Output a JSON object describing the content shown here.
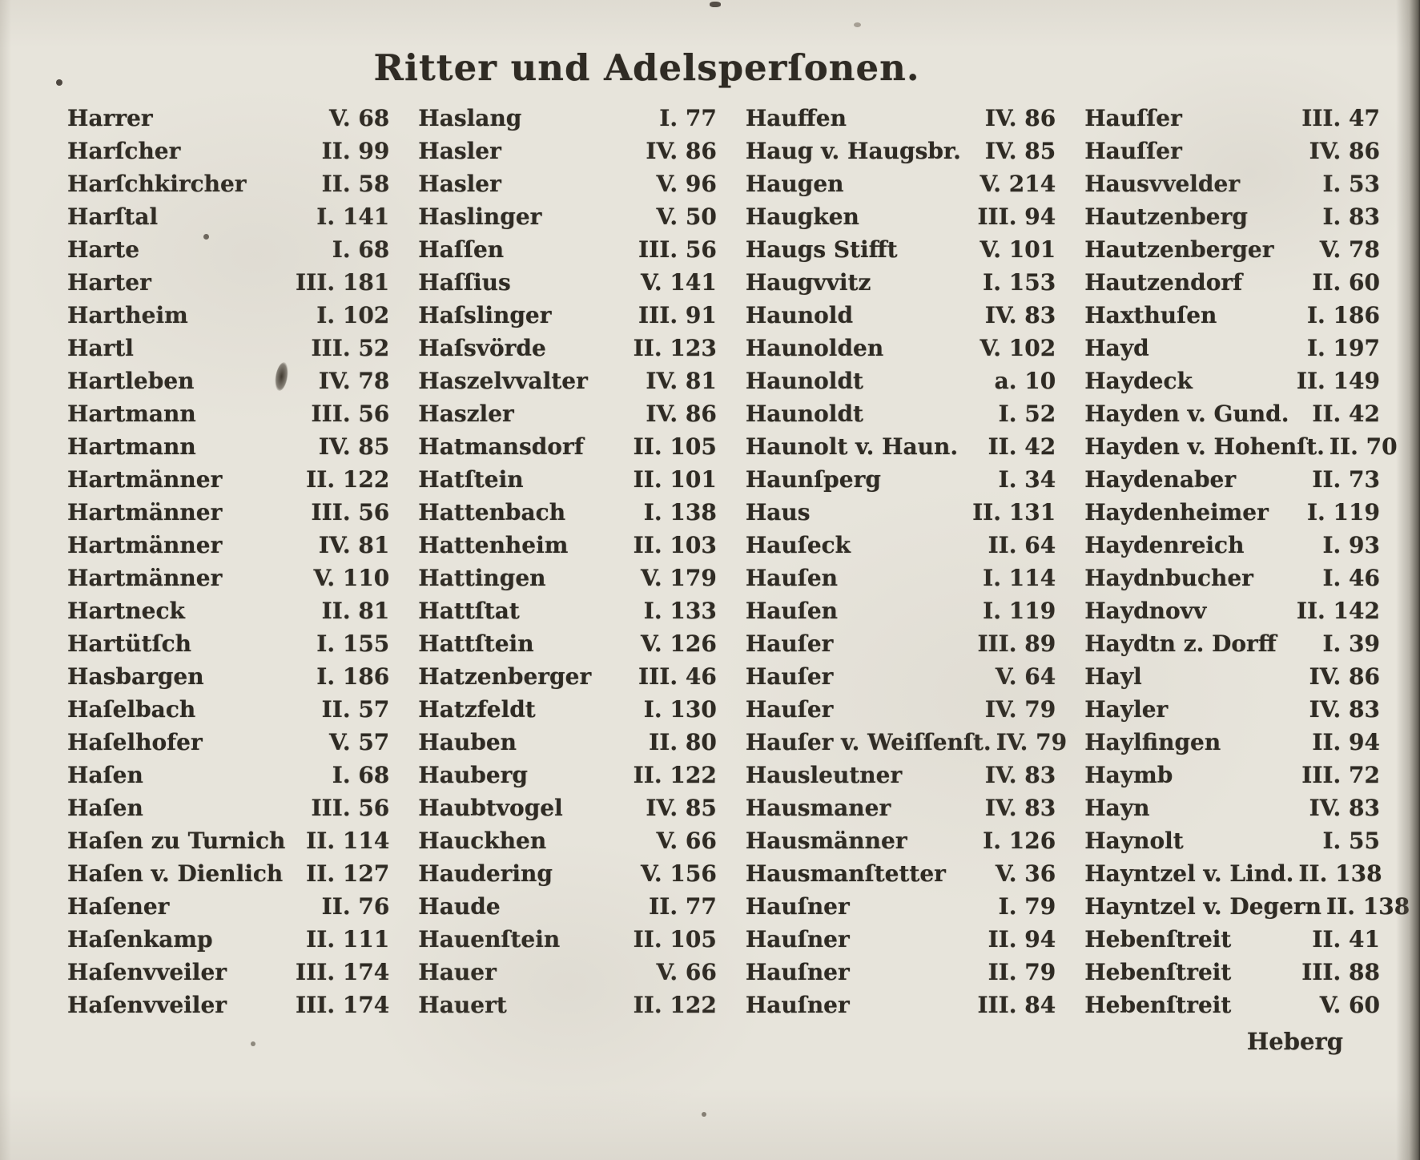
{
  "title": "Ritter und Adelsperſonen.",
  "catchword": "Heberg",
  "page_style": {
    "paper_color": "#e7e4db",
    "ink_color": "#2f2b24"
  },
  "index": {
    "columns": [
      [
        {
          "name": "Harrer",
          "ref": "V. 68"
        },
        {
          "name": "Harſcher",
          "ref": "II. 99"
        },
        {
          "name": "Harſchkircher",
          "ref": "II. 58"
        },
        {
          "name": "Harſtal",
          "ref": "I. 141"
        },
        {
          "name": "Harte",
          "ref": "I. 68"
        },
        {
          "name": "Harter",
          "ref": "III. 181"
        },
        {
          "name": "Hartheim",
          "ref": "I. 102"
        },
        {
          "name": "Hartl",
          "ref": "III. 52"
        },
        {
          "name": "Hartleben",
          "ref": "IV. 78"
        },
        {
          "name": "Hartmann",
          "ref": "III. 56"
        },
        {
          "name": "Hartmann",
          "ref": "IV. 85"
        },
        {
          "name": "Hartmänner",
          "ref": "II. 122"
        },
        {
          "name": "Hartmänner",
          "ref": "III. 56"
        },
        {
          "name": "Hartmänner",
          "ref": "IV. 81"
        },
        {
          "name": "Hartmänner",
          "ref": "V. 110"
        },
        {
          "name": "Hartneck",
          "ref": "II. 81"
        },
        {
          "name": "Hartütſch",
          "ref": "I. 155"
        },
        {
          "name": "Hasbargen",
          "ref": "I. 186"
        },
        {
          "name": "Haſelbach",
          "ref": "II. 57"
        },
        {
          "name": "Haſelhofer",
          "ref": "V. 57"
        },
        {
          "name": "Haſen",
          "ref": "I. 68"
        },
        {
          "name": "Haſen",
          "ref": "III. 56"
        },
        {
          "name": "Haſen zu Turnich",
          "ref": "II. 114"
        },
        {
          "name": "Haſen v. Dienlich",
          "ref": "II. 127"
        },
        {
          "name": "Haſener",
          "ref": "II. 76"
        },
        {
          "name": "Haſenkamp",
          "ref": "II. 111"
        },
        {
          "name": "Haſenvveiler",
          "ref": "III. 174"
        },
        {
          "name": "Haſenvveiler",
          "ref": "III. 174"
        }
      ],
      [
        {
          "name": "Haslang",
          "ref": "I. 77"
        },
        {
          "name": "Hasler",
          "ref": "IV. 86"
        },
        {
          "name": "Hasler",
          "ref": "V. 96"
        },
        {
          "name": "Haslinger",
          "ref": "V. 50"
        },
        {
          "name": "Haſſen",
          "ref": "III. 56"
        },
        {
          "name": "Haſſius",
          "ref": "V. 141"
        },
        {
          "name": "Haſslinger",
          "ref": "III. 91"
        },
        {
          "name": "Haſsvörde",
          "ref": "II. 123"
        },
        {
          "name": "Haszelvvalter",
          "ref": "IV. 81"
        },
        {
          "name": "Haszler",
          "ref": "IV. 86"
        },
        {
          "name": "Hatmansdorf",
          "ref": "II. 105"
        },
        {
          "name": "Hatſtein",
          "ref": "II. 101"
        },
        {
          "name": "Hattenbach",
          "ref": "I. 138"
        },
        {
          "name": "Hattenheim",
          "ref": "II. 103"
        },
        {
          "name": "Hattingen",
          "ref": "V. 179"
        },
        {
          "name": "Hattſtat",
          "ref": "I. 133"
        },
        {
          "name": "Hattſtein",
          "ref": "V. 126"
        },
        {
          "name": "Hatzenberger",
          "ref": "III. 46"
        },
        {
          "name": "Hatzfeldt",
          "ref": "I. 130"
        },
        {
          "name": "Hauben",
          "ref": "II. 80"
        },
        {
          "name": "Hauberg",
          "ref": "II. 122"
        },
        {
          "name": "Haubtvogel",
          "ref": "IV. 85"
        },
        {
          "name": "Hauckhen",
          "ref": "V. 66"
        },
        {
          "name": "Haudering",
          "ref": "V. 156"
        },
        {
          "name": "Haude",
          "ref": "II. 77"
        },
        {
          "name": "Hauenſtein",
          "ref": "II. 105"
        },
        {
          "name": "Hauer",
          "ref": "V. 66"
        },
        {
          "name": "Hauert",
          "ref": "II. 122"
        }
      ],
      [
        {
          "name": "Hauffen",
          "ref": "IV. 86"
        },
        {
          "name": "Haug v. Haugsbr.",
          "ref": "IV. 85"
        },
        {
          "name": "Haugen",
          "ref": "V. 214"
        },
        {
          "name": "Haugken",
          "ref": "III. 94"
        },
        {
          "name": "Haugs Stifft",
          "ref": "V. 101"
        },
        {
          "name": "Haugvvitz",
          "ref": "I. 153"
        },
        {
          "name": "Haunold",
          "ref": "IV. 83"
        },
        {
          "name": "Haunolden",
          "ref": "V. 102"
        },
        {
          "name": "Haunoldt",
          "ref": "a. 10"
        },
        {
          "name": "Haunoldt",
          "ref": "I. 52"
        },
        {
          "name": "Haunolt v. Haun.",
          "ref": "II. 42"
        },
        {
          "name": "Haunſperg",
          "ref": "I. 34"
        },
        {
          "name": "Haus",
          "ref": "II. 131"
        },
        {
          "name": "Hauſeck",
          "ref": "II. 64"
        },
        {
          "name": "Hauſen",
          "ref": "I. 114"
        },
        {
          "name": "Hauſen",
          "ref": "I. 119"
        },
        {
          "name": "Hauſer",
          "ref": "III. 89"
        },
        {
          "name": "Hauſer",
          "ref": "V. 64"
        },
        {
          "name": "Hauſer",
          "ref": "IV. 79"
        },
        {
          "name": "Hauſer v. Weiſſenſt.",
          "ref": "IV. 79"
        },
        {
          "name": "Hausleutner",
          "ref": "IV. 83"
        },
        {
          "name": "Hausmaner",
          "ref": "IV. 83"
        },
        {
          "name": "Hausmänner",
          "ref": "I. 126"
        },
        {
          "name": "Hausmanſtetter",
          "ref": "V. 36"
        },
        {
          "name": "Hauſner",
          "ref": "I. 79"
        },
        {
          "name": "Hauſner",
          "ref": "II. 94"
        },
        {
          "name": "Hauſner",
          "ref": "II. 79"
        },
        {
          "name": "Hauſner",
          "ref": "III. 84"
        }
      ],
      [
        {
          "name": "Hauſſer",
          "ref": "III. 47"
        },
        {
          "name": "Hauſſer",
          "ref": "IV. 86"
        },
        {
          "name": "Hausvvelder",
          "ref": "I. 53"
        },
        {
          "name": "Hautzenberg",
          "ref": "I. 83"
        },
        {
          "name": "Hautzenberger",
          "ref": "V. 78"
        },
        {
          "name": "Hautzendorf",
          "ref": "II. 60"
        },
        {
          "name": "Haxthuſen",
          "ref": "I. 186"
        },
        {
          "name": "Hayd",
          "ref": "I. 197"
        },
        {
          "name": "Haydeck",
          "ref": "II. 149"
        },
        {
          "name": "Hayden v. Gund.",
          "ref": "II. 42"
        },
        {
          "name": "Hayden v. Hohenſt.",
          "ref": "II. 70"
        },
        {
          "name": "Haydenaber",
          "ref": "II. 73"
        },
        {
          "name": "Haydenheimer",
          "ref": "I. 119"
        },
        {
          "name": "Haydenreich",
          "ref": "I. 93"
        },
        {
          "name": "Haydnbucher",
          "ref": "I. 46"
        },
        {
          "name": "Haydnovv",
          "ref": "II. 142"
        },
        {
          "name": "Haydtn z. Dorff",
          "ref": "I. 39"
        },
        {
          "name": "Hayl",
          "ref": "IV. 86"
        },
        {
          "name": "Hayler",
          "ref": "IV. 83"
        },
        {
          "name": "Haylfingen",
          "ref": "II. 94"
        },
        {
          "name": "Haymb",
          "ref": "III. 72"
        },
        {
          "name": "Hayn",
          "ref": "IV. 83"
        },
        {
          "name": "Haynolt",
          "ref": "I. 55"
        },
        {
          "name": "Hayntzel v. Lind.",
          "ref": "II. 138"
        },
        {
          "name": "Hayntzel v. Degern",
          "ref": "II. 138"
        },
        {
          "name": "Hebenſtreit",
          "ref": "II. 41"
        },
        {
          "name": "Hebenſtreit",
          "ref": "III. 88"
        },
        {
          "name": "Hebenſtreit",
          "ref": "V. 60"
        }
      ]
    ]
  }
}
